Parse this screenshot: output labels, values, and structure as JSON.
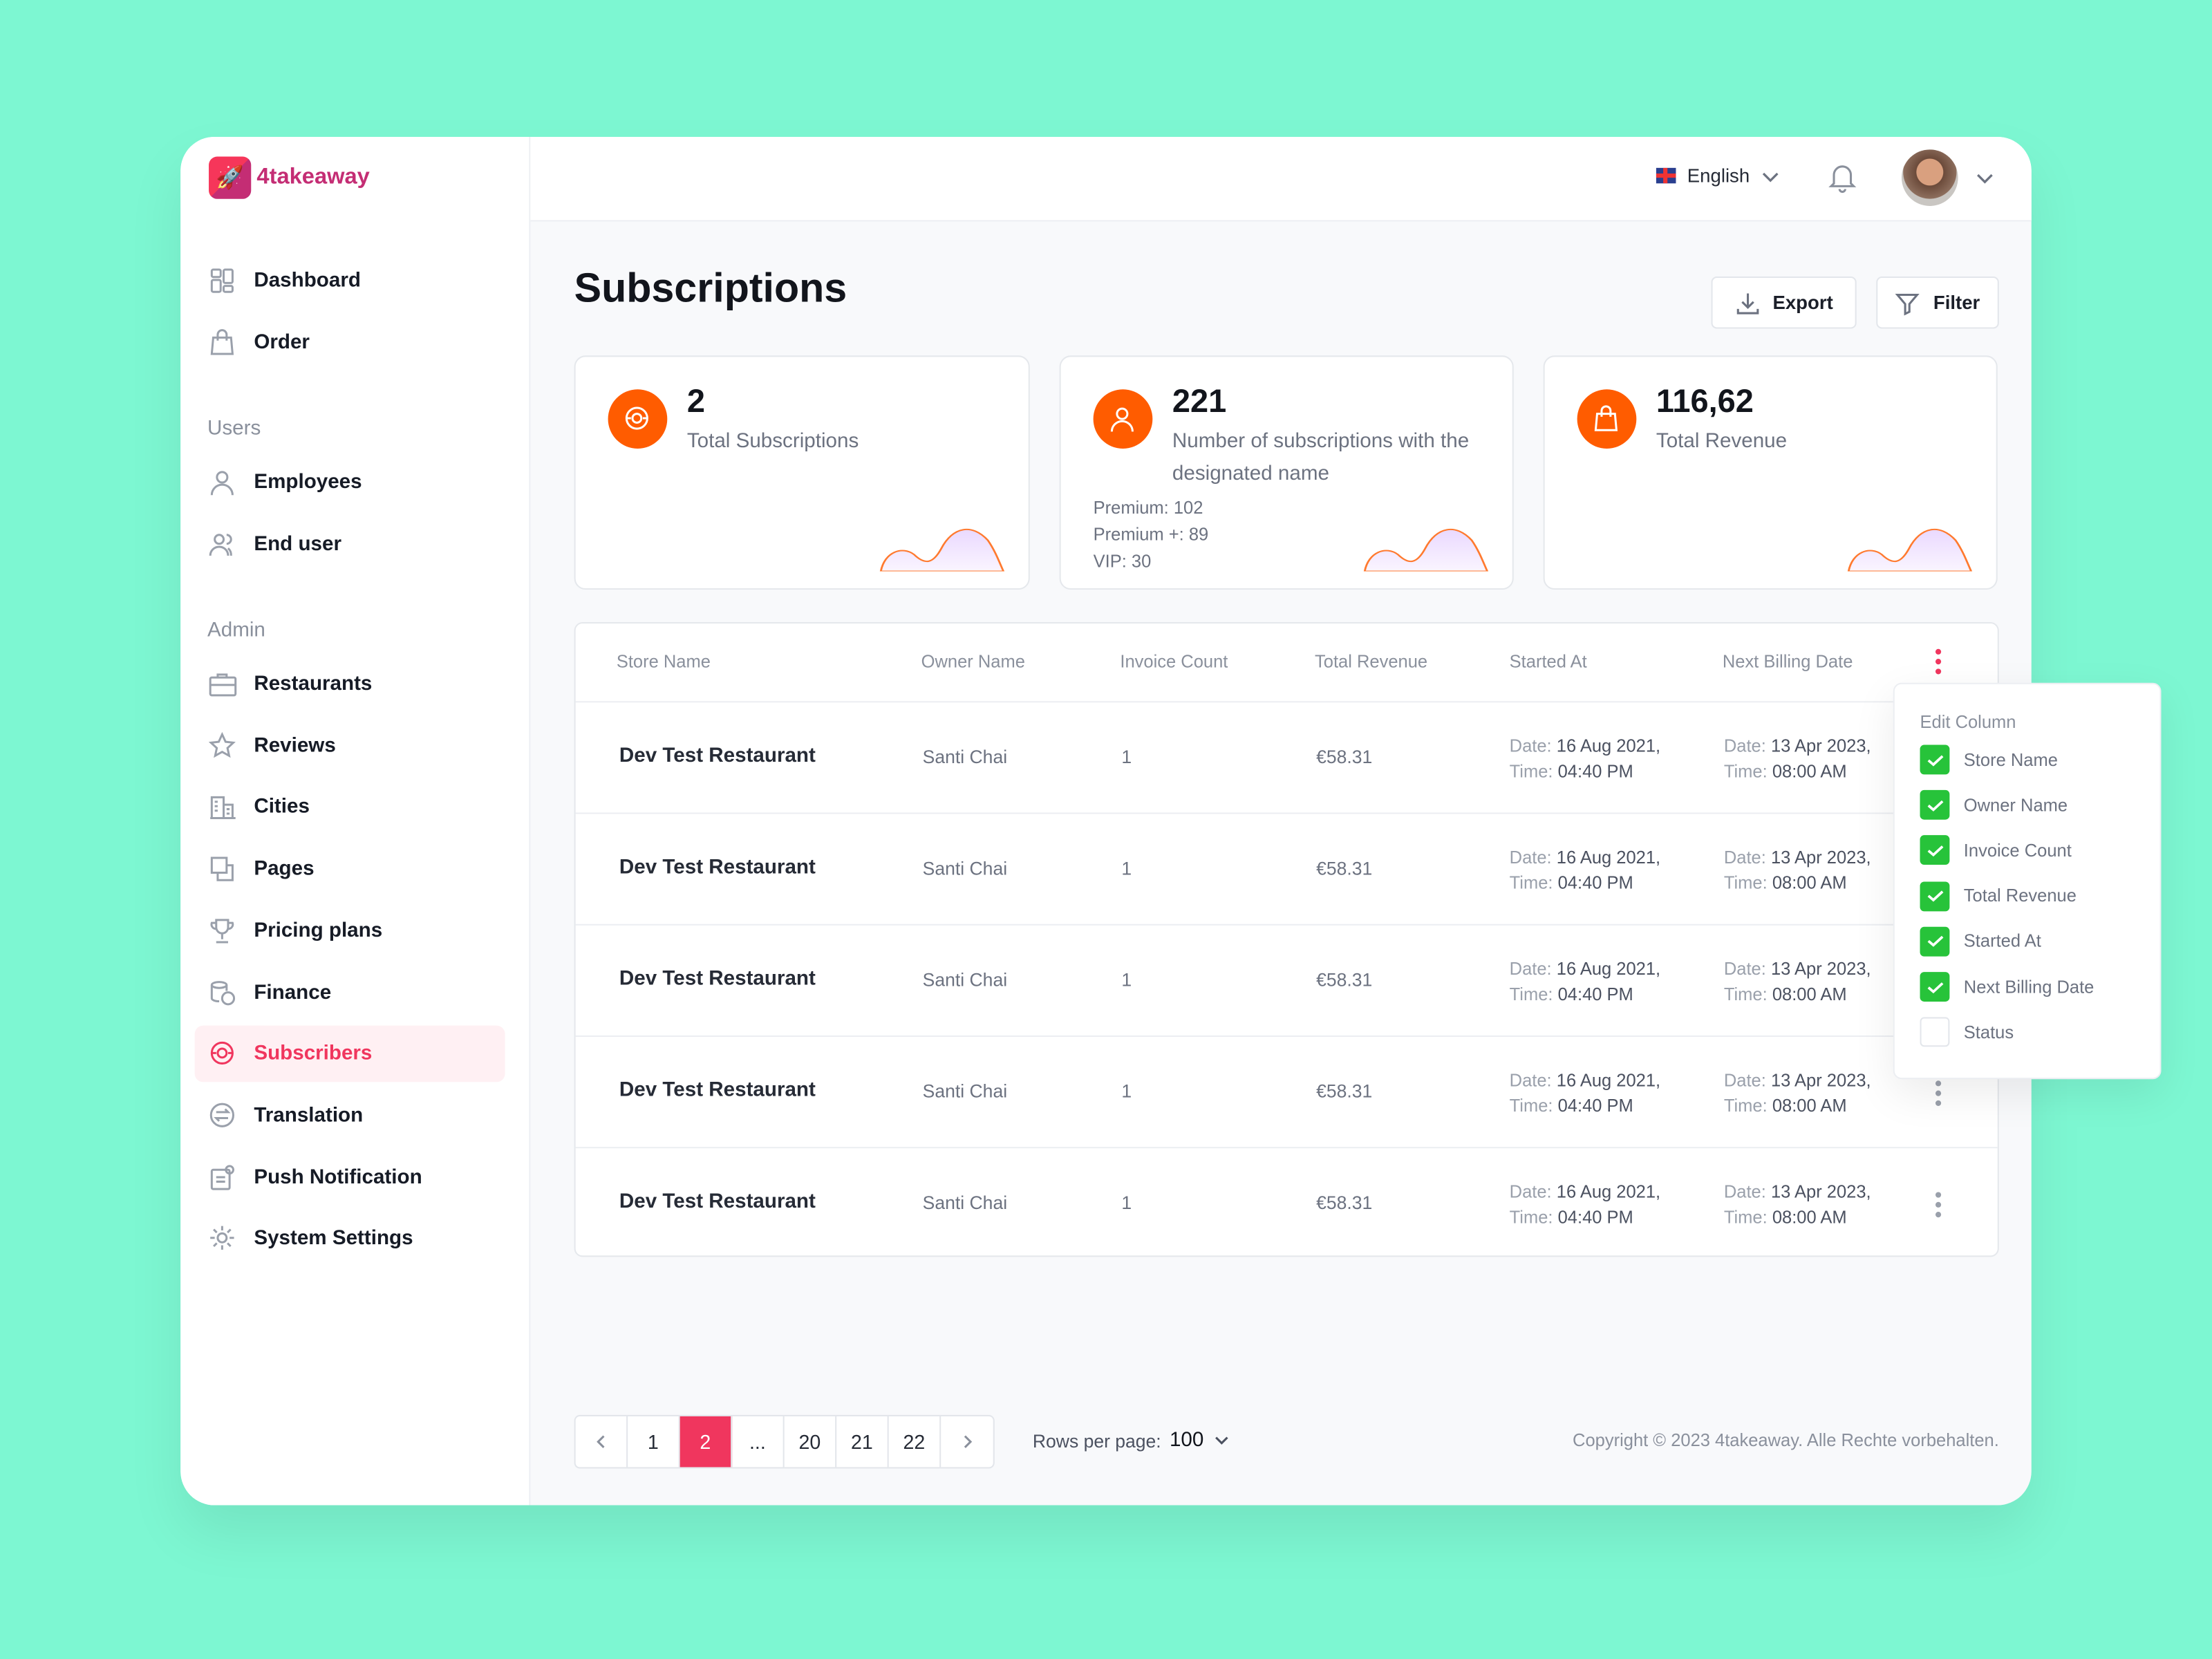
{
  "brand": {
    "name": "4takeaway",
    "accent": "#f0365e",
    "logo_color": "#c42d74"
  },
  "sidebar": {
    "items_top": [
      {
        "label": "Dashboard",
        "icon": "grid-icon"
      },
      {
        "label": "Order",
        "icon": "bag-icon"
      }
    ],
    "users_section": "Users",
    "users_items": [
      {
        "label": "Employees",
        "icon": "user-icon"
      },
      {
        "label": "End user",
        "icon": "users-icon"
      }
    ],
    "admin_section": "Admin",
    "admin_items": [
      {
        "label": "Restaurants",
        "icon": "briefcase-icon"
      },
      {
        "label": "Reviews",
        "icon": "star-icon"
      },
      {
        "label": "Cities",
        "icon": "building-icon"
      },
      {
        "label": "Pages",
        "icon": "pages-icon"
      },
      {
        "label": "Pricing plans",
        "icon": "trophy-icon"
      },
      {
        "label": "Finance",
        "icon": "coins-icon"
      },
      {
        "label": "Subscribers",
        "icon": "subscribe-icon",
        "active": true
      },
      {
        "label": "Translation",
        "icon": "translate-icon"
      },
      {
        "label": "Push Notification",
        "icon": "notification-icon"
      },
      {
        "label": "System Settings",
        "icon": "gear-icon"
      }
    ]
  },
  "header": {
    "language": "English"
  },
  "page": {
    "title": "Subscriptions",
    "export_label": "Export",
    "filter_label": "Filter"
  },
  "stats": [
    {
      "value": "2",
      "label": "Total Subscriptions",
      "icon": "subscribe-icon"
    },
    {
      "value": "221",
      "label": "Number of subscriptions with the designated name",
      "icon": "user-icon",
      "breakdown": [
        "Premium: 102",
        "Premium +: 89",
        "VIP: 30"
      ]
    },
    {
      "value": "116,62",
      "label": "Total Revenue",
      "icon": "bag-icon"
    }
  ],
  "table": {
    "columns": [
      "Store Name",
      "Owner Name",
      "Invoice Count",
      "Total Revenue",
      "Started At",
      "Next Billing Date"
    ],
    "rows": [
      {
        "store": "Dev Test Restaurant",
        "owner": "Santi Chai",
        "invoices": "1",
        "revenue": "€58.31",
        "started_date": "16 Aug 2021,",
        "started_time": "04:40 PM",
        "next_date": "13 Apr 2023,",
        "next_time": "08:00 AM"
      },
      {
        "store": "Dev Test Restaurant",
        "owner": "Santi Chai",
        "invoices": "1",
        "revenue": "€58.31",
        "started_date": "16 Aug 2021,",
        "started_time": "04:40 PM",
        "next_date": "13 Apr 2023,",
        "next_time": "08:00 AM"
      },
      {
        "store": "Dev Test Restaurant",
        "owner": "Santi Chai",
        "invoices": "1",
        "revenue": "€58.31",
        "started_date": "16 Aug 2021,",
        "started_time": "04:40 PM",
        "next_date": "13 Apr 2023,",
        "next_time": "08:00 AM"
      },
      {
        "store": "Dev Test Restaurant",
        "owner": "Santi Chai",
        "invoices": "1",
        "revenue": "€58.31",
        "started_date": "16 Aug 2021,",
        "started_time": "04:40 PM",
        "next_date": "13 Apr 2023,",
        "next_time": "08:00 AM"
      },
      {
        "store": "Dev Test Restaurant",
        "owner": "Santi Chai",
        "invoices": "1",
        "revenue": "€58.31",
        "started_date": "16 Aug 2021,",
        "started_time": "04:40 PM",
        "next_date": "13 Apr 2023,",
        "next_time": "08:00 AM"
      }
    ],
    "date_prefix": "Date:",
    "time_prefix": "Time:"
  },
  "edit_column": {
    "title": "Edit Column",
    "options": [
      {
        "label": "Store Name",
        "checked": true
      },
      {
        "label": "Owner Name",
        "checked": true
      },
      {
        "label": "Invoice Count",
        "checked": true
      },
      {
        "label": "Total Revenue",
        "checked": true
      },
      {
        "label": "Started At",
        "checked": true
      },
      {
        "label": "Next Billing Date",
        "checked": true
      },
      {
        "label": "Status",
        "checked": false
      }
    ]
  },
  "pagination": {
    "pages": [
      "1",
      "2",
      "...",
      "20",
      "21",
      "22"
    ],
    "current": "2",
    "rows_label": "Rows per page:",
    "rows_value": "100"
  },
  "footer": {
    "copyright": "Copyright © 2023 4takeaway. Alle Rechte vorbehalten."
  }
}
